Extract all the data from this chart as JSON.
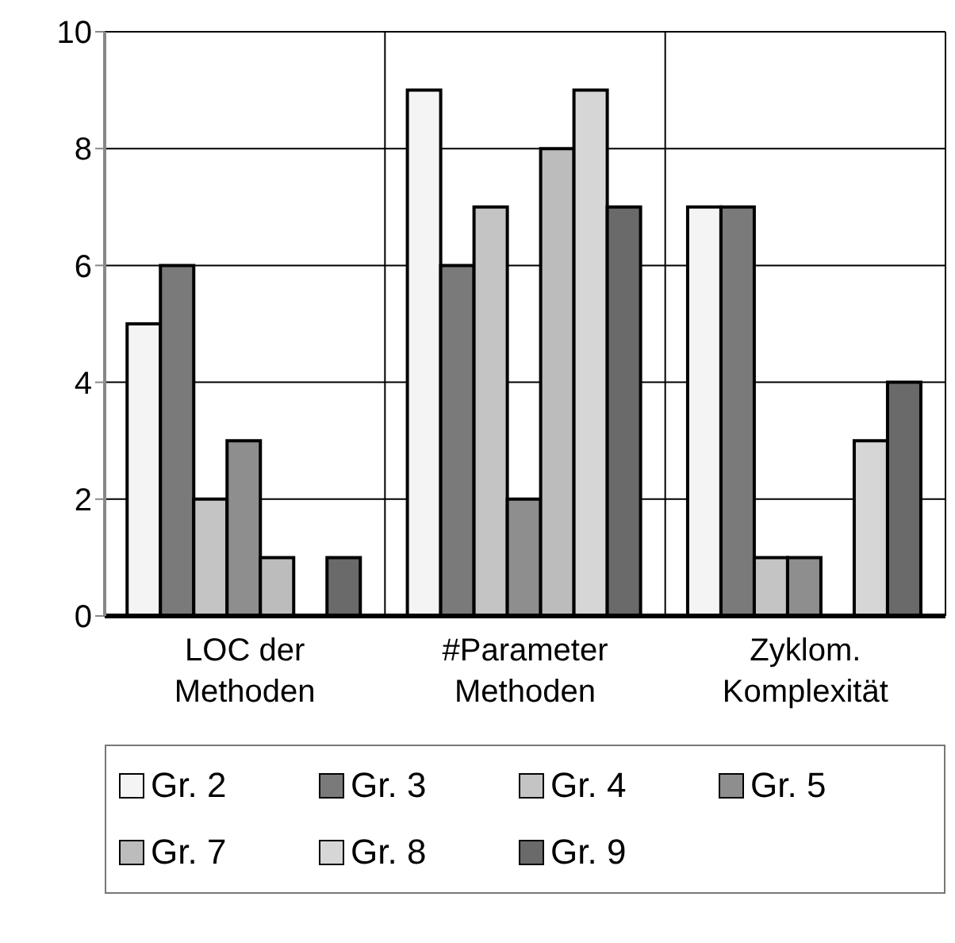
{
  "chart_data": {
    "type": "bar",
    "categories": [
      "LOC der Methoden",
      "#Parameter Methoden",
      "Zyklom. Komplexität"
    ],
    "series": [
      {
        "name": "Gr. 2",
        "color": "#f4f4f4",
        "values": [
          5,
          9,
          7
        ]
      },
      {
        "name": "Gr. 3",
        "color": "#7a7a7a",
        "values": [
          6,
          6,
          7
        ]
      },
      {
        "name": "Gr. 4",
        "color": "#c4c4c4",
        "values": [
          2,
          7,
          1
        ]
      },
      {
        "name": "Gr. 5",
        "color": "#8e8e8e",
        "values": [
          3,
          2,
          1
        ]
      },
      {
        "name": "Gr. 7",
        "color": "#bcbcbc",
        "values": [
          1,
          8,
          null
        ]
      },
      {
        "name": "Gr. 8",
        "color": "#d6d6d6",
        "values": [
          null,
          9,
          3
        ]
      },
      {
        "name": "Gr. 9",
        "color": "#6a6a6a",
        "values": [
          1,
          7,
          4
        ]
      }
    ],
    "ylim": [
      0,
      10
    ],
    "yticks": [
      0,
      2,
      4,
      6,
      8,
      10
    ],
    "grid": true,
    "legend": "bottom"
  }
}
